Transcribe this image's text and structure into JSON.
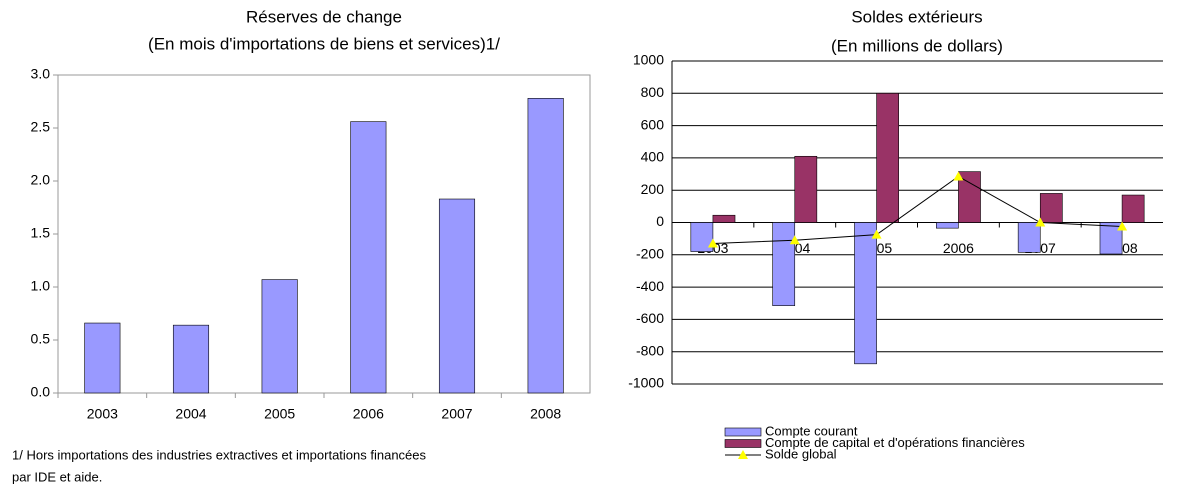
{
  "chart_data": [
    {
      "type": "bar",
      "title": "Réserves de change",
      "subtitle": "(En mois d'importations de biens et services)1/",
      "categories": [
        "2003",
        "2004",
        "2005",
        "2006",
        "2007",
        "2008"
      ],
      "values": [
        0.66,
        0.64,
        1.07,
        2.56,
        1.83,
        2.78
      ],
      "color": "#9999ff",
      "ylim": [
        0,
        3
      ],
      "yticks": [
        {
          "value": 0,
          "label": "0.0"
        },
        0.5,
        {
          "value": 1,
          "label": "1.0"
        },
        1.5,
        {
          "value": 2,
          "label": "2.0"
        },
        2.5,
        {
          "value": 3,
          "label": "3.0"
        }
      ],
      "grid": false,
      "note": [
        "1/ Hors importations des industries extractives et importations financées",
        "par IDE et aide."
      ]
    },
    {
      "type": "bar",
      "title": "Soldes extérieurs",
      "subtitle": "(En millions de dollars)",
      "categories": [
        "2003",
        "2004",
        "2005",
        "2006",
        "2007",
        "2008"
      ],
      "series": [
        {
          "name": "Compte courant",
          "color": "#9999ff",
          "values": [
            -180,
            -515,
            -875,
            -35,
            -185,
            -195
          ]
        },
        {
          "name": "Compte de capital et d'opérations financières",
          "color": "#993366",
          "values": [
            45,
            410,
            800,
            315,
            180,
            170
          ]
        },
        {
          "name": "Solde global",
          "type": "line",
          "color": "#000000",
          "marker_color": "#ffff00",
          "values": [
            -130,
            -110,
            -75,
            285,
            0,
            -25
          ]
        }
      ],
      "ylim": [
        -1000,
        1000
      ],
      "yticks": [
        -1000,
        -800,
        -600,
        -400,
        -200,
        0,
        200,
        400,
        600,
        800,
        1000
      ],
      "grid": true,
      "legend": "bottom"
    }
  ]
}
